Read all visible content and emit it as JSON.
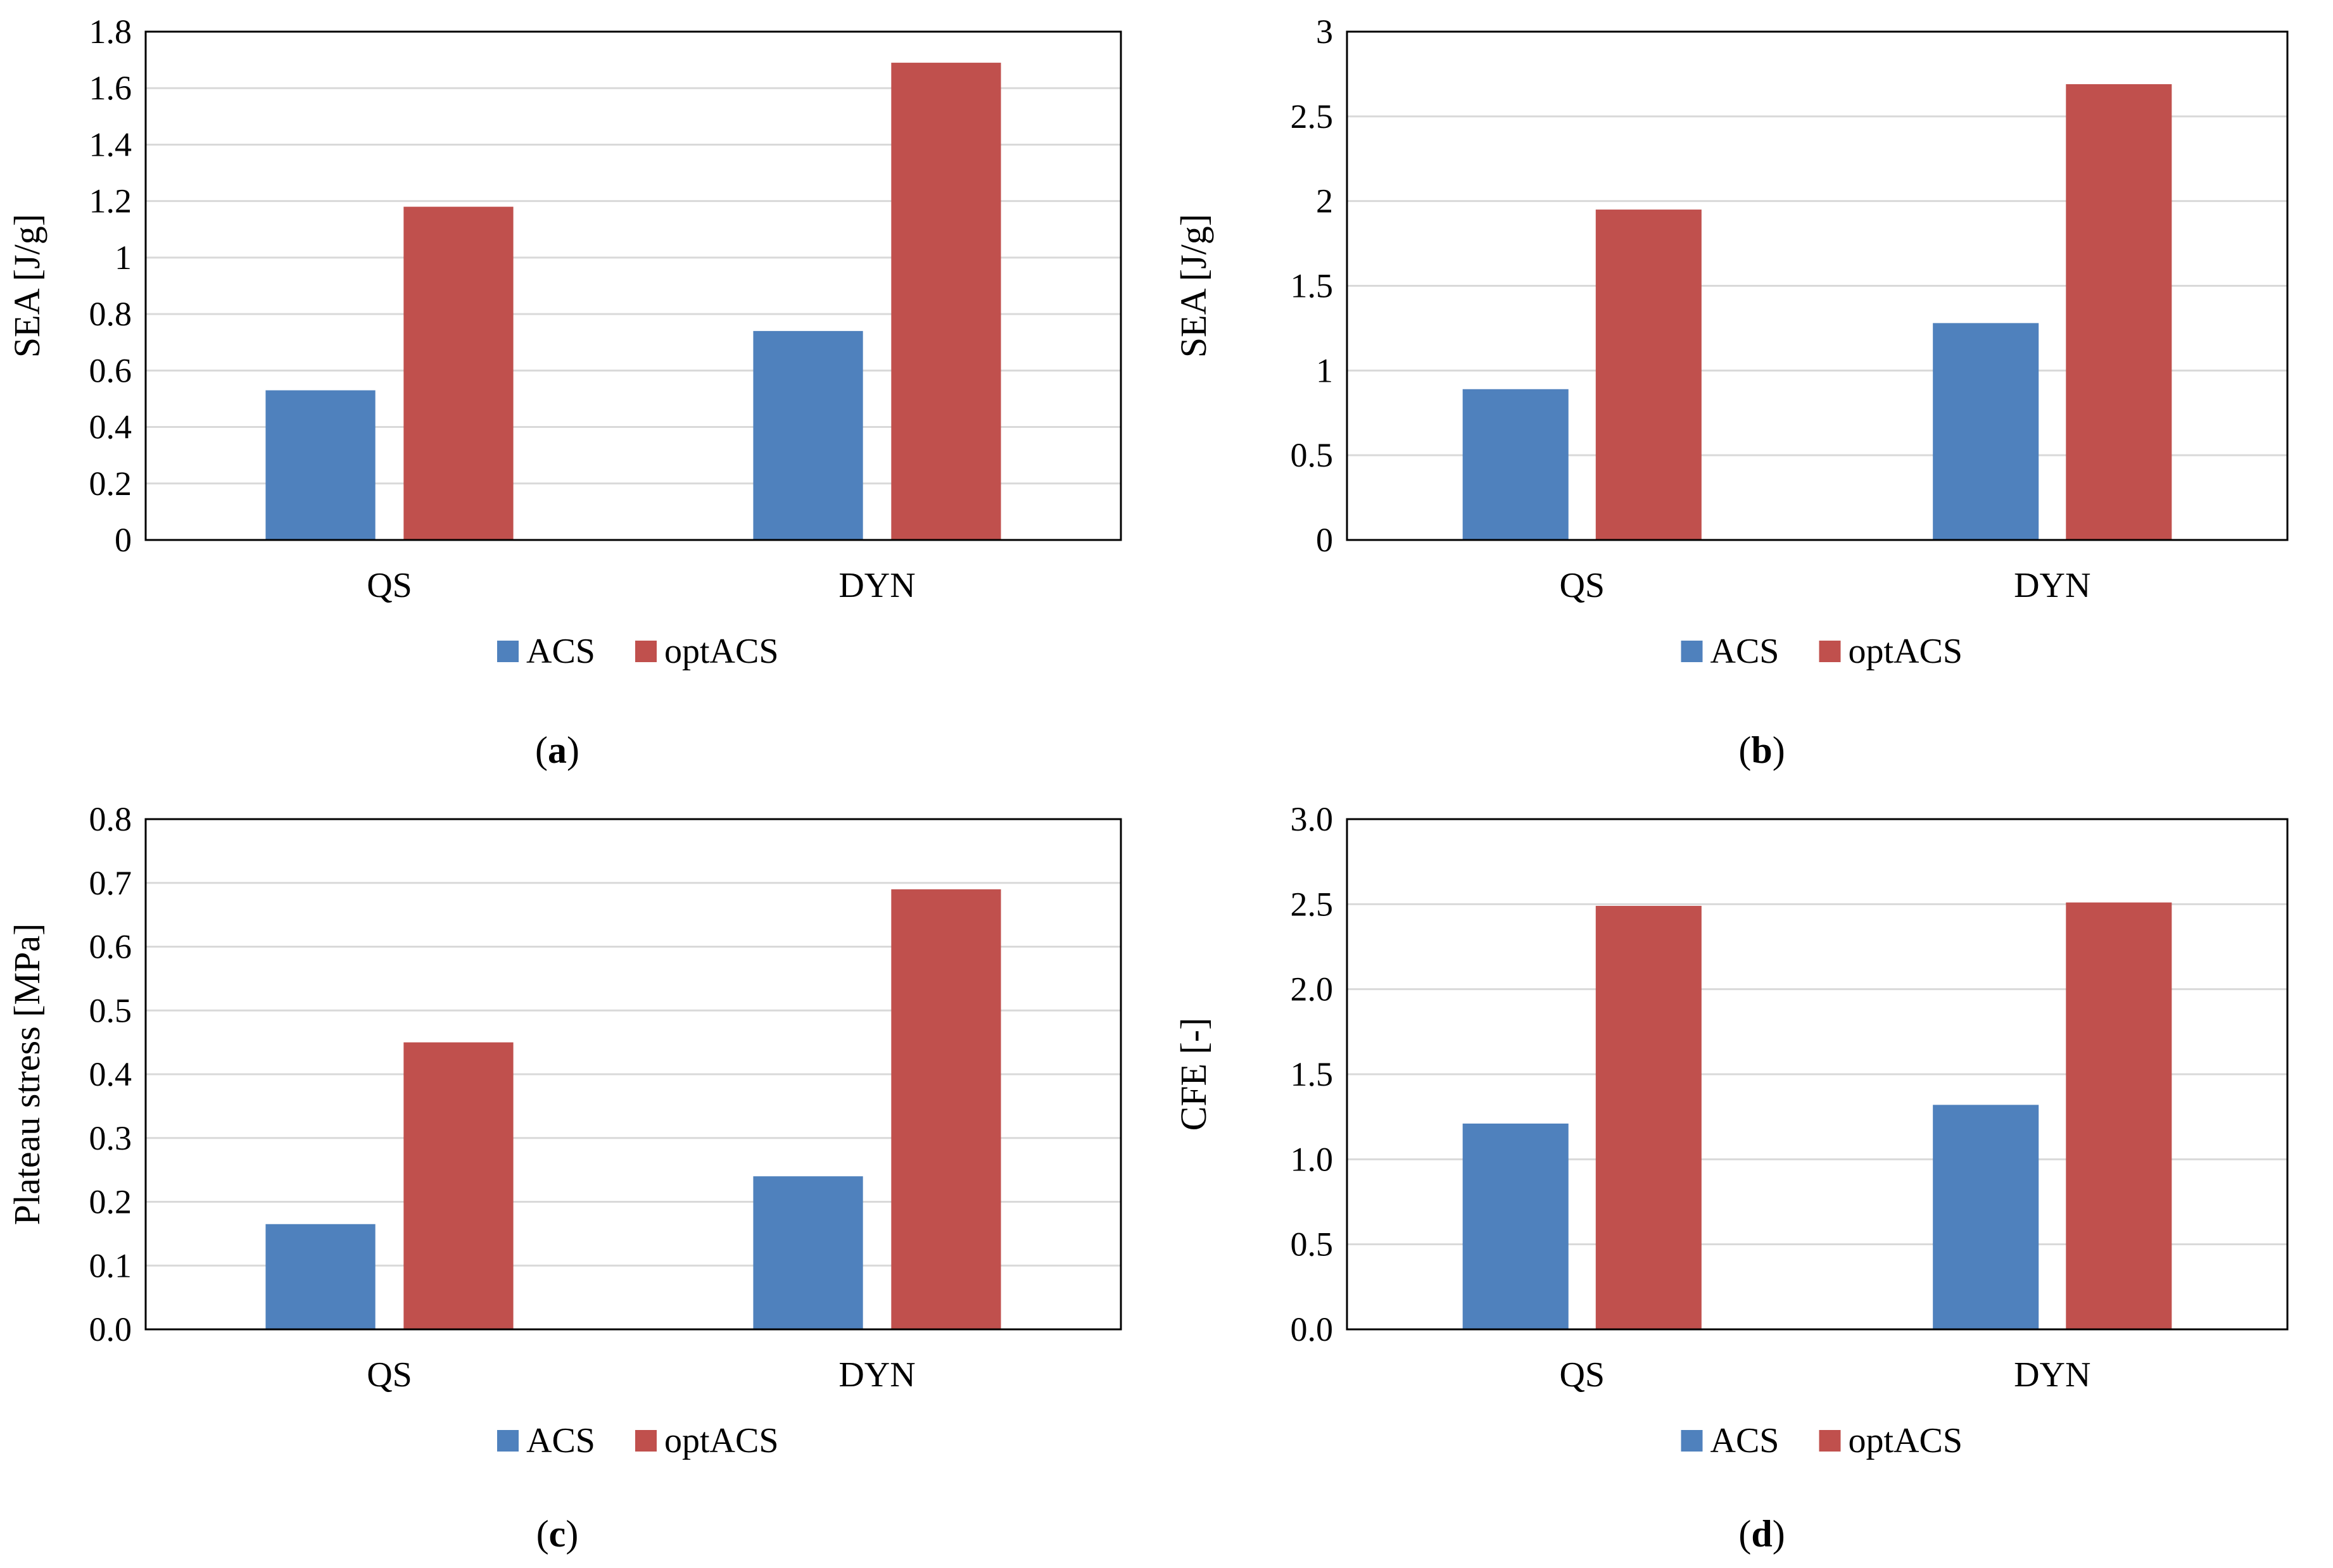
{
  "colors": {
    "ACS": "#4f81bd",
    "optACS": "#c0504d",
    "grid": "#d9d9d9",
    "frame": "#000000"
  },
  "legend": {
    "items": [
      "ACS",
      "optACS"
    ]
  },
  "panels": [
    {
      "caption_open": "(",
      "caption_letter": "a",
      "caption_close": ")"
    },
    {
      "caption_open": "(",
      "caption_letter": "b",
      "caption_close": ")"
    },
    {
      "caption_open": "(",
      "caption_letter": "c",
      "caption_close": ")"
    },
    {
      "caption_open": "(",
      "caption_letter": "d",
      "caption_close": ")"
    }
  ],
  "chart_data": [
    {
      "type": "bar",
      "title": "",
      "categories": [
        "QS",
        "DYN"
      ],
      "series": [
        {
          "name": "ACS",
          "values": [
            0.53,
            0.74
          ]
        },
        {
          "name": "optACS",
          "values": [
            1.18,
            1.69
          ]
        }
      ],
      "xlabel": "",
      "ylabel": "SEA [J/g]",
      "ylim": [
        0,
        1.8
      ],
      "yticks": [
        "0",
        "0.2",
        "0.4",
        "0.6",
        "0.8",
        "1",
        "1.2",
        "1.4",
        "1.6",
        "1.8"
      ],
      "legend": "bottom"
    },
    {
      "type": "bar",
      "title": "",
      "categories": [
        "QS",
        "DYN"
      ],
      "series": [
        {
          "name": "ACS",
          "values": [
            0.89,
            1.28
          ]
        },
        {
          "name": "optACS",
          "values": [
            1.95,
            2.69
          ]
        }
      ],
      "xlabel": "",
      "ylabel": "SEA [J/g]",
      "ylim": [
        0,
        3
      ],
      "yticks": [
        "0",
        "0.5",
        "1",
        "1.5",
        "2",
        "2.5",
        "3"
      ],
      "legend": "bottom"
    },
    {
      "type": "bar",
      "title": "",
      "categories": [
        "QS",
        "DYN"
      ],
      "series": [
        {
          "name": "ACS",
          "values": [
            0.165,
            0.24
          ]
        },
        {
          "name": "optACS",
          "values": [
            0.45,
            0.69
          ]
        }
      ],
      "xlabel": "",
      "ylabel": "Plateau stress [MPa]",
      "ylim": [
        0,
        0.8
      ],
      "yticks": [
        "0.0",
        "0.1",
        "0.2",
        "0.3",
        "0.4",
        "0.5",
        "0.6",
        "0.7",
        "0.8"
      ],
      "legend": "bottom"
    },
    {
      "type": "bar",
      "title": "",
      "categories": [
        "QS",
        "DYN"
      ],
      "series": [
        {
          "name": "ACS",
          "values": [
            1.21,
            1.32
          ]
        },
        {
          "name": "optACS",
          "values": [
            2.49,
            2.51
          ]
        }
      ],
      "xlabel": "",
      "ylabel": "CFE [-]",
      "ylim": [
        0,
        3.0
      ],
      "yticks": [
        "0.0",
        "0.5",
        "1.0",
        "1.5",
        "2.0",
        "2.5",
        "3.0"
      ],
      "legend": "bottom"
    }
  ]
}
